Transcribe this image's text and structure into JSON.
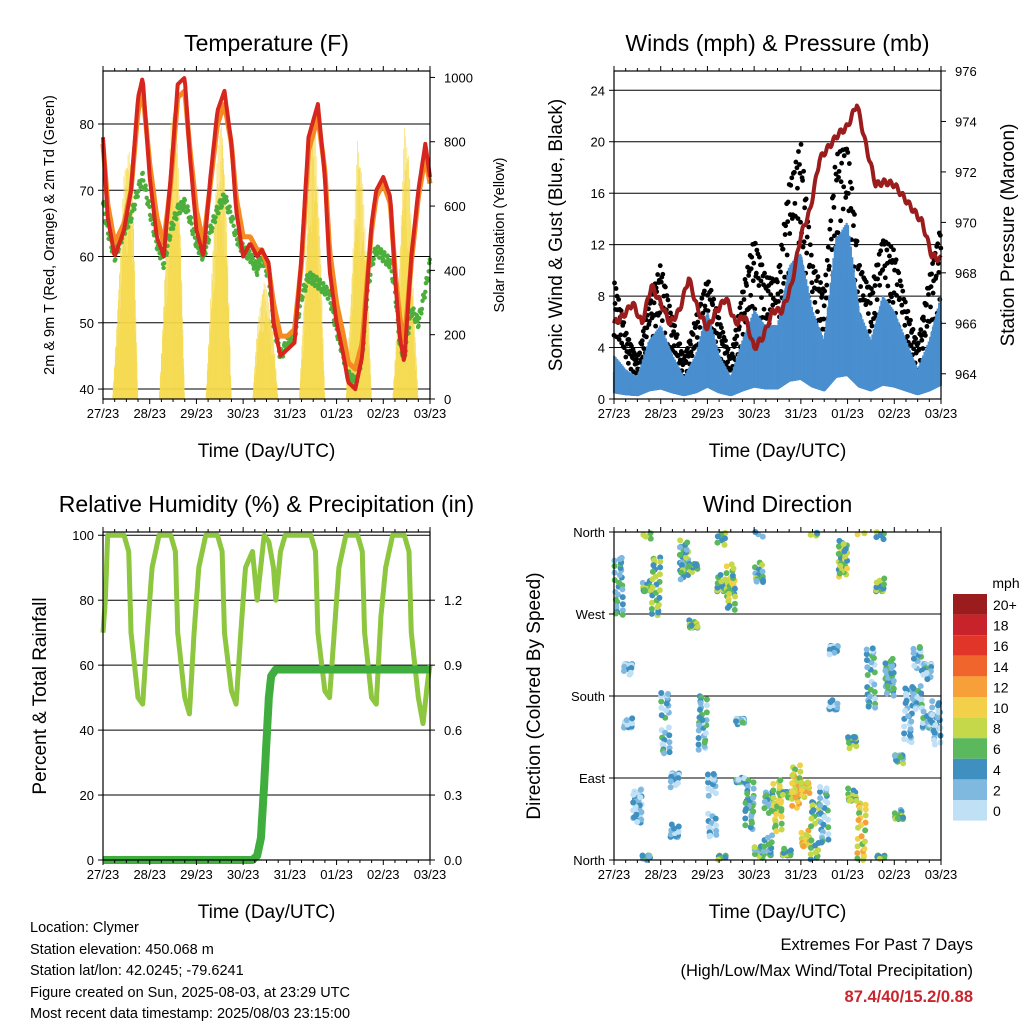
{
  "chart_data": [
    {
      "type": "line",
      "title": "Temperature (F)",
      "xlabel": "Time (Day/UTC)",
      "ylabel": "2m & 9m T (Red, Orange) & 2m Td (Green)",
      "y2label": "Solar Insolation (Yellow)",
      "x_ticks": [
        "27/23",
        "28/23",
        "29/23",
        "30/23",
        "31/23",
        "01/23",
        "02/23",
        "03/23"
      ],
      "xlim": [
        0,
        7
      ],
      "ylim": [
        38.5,
        88
      ],
      "y_ticks": [
        40,
        50,
        60,
        70,
        80
      ],
      "y2lim": [
        0,
        1020
      ],
      "y2_ticks": [
        0,
        200,
        400,
        600,
        800,
        1000
      ],
      "grid": "horizontal",
      "series": [
        {
          "name": "2m T",
          "color": "#d7261e",
          "x": [
            0,
            0.1,
            0.25,
            0.45,
            0.6,
            0.75,
            0.85,
            1.0,
            1.15,
            1.3,
            1.45,
            1.6,
            1.75,
            1.85,
            2.0,
            2.15,
            2.3,
            2.45,
            2.6,
            2.75,
            2.85,
            3.0,
            3.15,
            3.3,
            3.4,
            3.55,
            3.65,
            3.8,
            3.95,
            4.1,
            4.25,
            4.4,
            4.6,
            4.75,
            4.85,
            5.0,
            5.15,
            5.25,
            5.4,
            5.55,
            5.65,
            5.75,
            5.85,
            6.0,
            6.15,
            6.25,
            6.35,
            6.45,
            6.6,
            6.75,
            6.9,
            7.0
          ],
          "y": [
            78,
            66,
            60,
            64,
            70,
            84,
            87,
            72,
            63,
            60,
            72,
            86,
            87,
            76,
            64,
            60,
            72,
            82,
            85,
            77,
            67,
            60,
            62,
            60,
            61,
            59,
            50,
            45,
            46,
            47,
            60,
            78,
            83,
            72,
            58,
            50,
            45,
            41,
            40,
            45,
            55,
            65,
            70,
            72,
            69,
            57,
            48,
            44,
            60,
            70,
            77,
            72
          ]
        },
        {
          "name": "9m T",
          "color": "#f58a22",
          "x": [
            0,
            0.1,
            0.25,
            0.45,
            0.6,
            0.75,
            0.85,
            1.0,
            1.15,
            1.3,
            1.45,
            1.6,
            1.75,
            1.85,
            2.0,
            2.15,
            2.3,
            2.45,
            2.6,
            2.75,
            2.85,
            3.0,
            3.15,
            3.3,
            3.4,
            3.55,
            3.65,
            3.8,
            3.95,
            4.1,
            4.25,
            4.4,
            4.6,
            4.75,
            4.85,
            5.0,
            5.15,
            5.25,
            5.4,
            5.55,
            5.65,
            5.75,
            5.85,
            6.0,
            6.15,
            6.25,
            6.35,
            6.45,
            6.6,
            6.75,
            6.9,
            7.0
          ],
          "y": [
            77,
            68,
            62,
            65,
            70,
            82,
            85,
            74,
            66,
            62,
            71,
            84,
            85,
            77,
            67,
            62,
            71,
            80,
            83,
            77,
            69,
            63,
            63,
            61,
            61,
            58,
            53,
            48,
            48,
            49,
            59,
            76,
            81,
            73,
            61,
            53,
            48,
            44,
            43,
            47,
            56,
            64,
            69,
            71,
            68,
            58,
            51,
            47,
            59,
            69,
            75,
            71
          ]
        },
        {
          "name": "2m Td",
          "color": "#4caf3c",
          "x": [
            0,
            0.1,
            0.25,
            0.45,
            0.6,
            0.75,
            0.85,
            1.0,
            1.15,
            1.3,
            1.45,
            1.6,
            1.75,
            1.85,
            2.0,
            2.15,
            2.3,
            2.45,
            2.6,
            2.75,
            2.85,
            3.0,
            3.15,
            3.3,
            3.4,
            3.55,
            3.65,
            3.8,
            3.95,
            4.1,
            4.25,
            4.4,
            4.6,
            4.75,
            4.85,
            5.0,
            5.15,
            5.25,
            5.4,
            5.55,
            5.65,
            5.75,
            5.85,
            6.0,
            6.15,
            6.25,
            6.35,
            6.45,
            6.6,
            6.75,
            6.9,
            7.0
          ],
          "y": [
            68,
            64,
            60,
            64,
            66,
            70,
            72,
            67,
            62,
            59,
            64,
            67,
            68,
            66,
            62,
            60,
            64,
            67,
            69,
            66,
            63,
            61,
            60,
            58,
            60,
            57,
            50,
            45,
            47,
            48,
            54,
            57,
            56,
            55,
            54,
            49,
            45,
            42,
            41,
            45,
            54,
            59,
            61,
            60,
            59,
            55,
            47,
            45,
            52,
            50,
            55,
            59
          ]
        },
        {
          "name": "Solar Insolation",
          "color": "#f5d94a",
          "axis": "y2",
          "x": [
            0,
            0.2,
            0.3,
            0.45,
            0.55,
            0.65,
            0.75,
            1.2,
            1.3,
            1.45,
            1.55,
            1.65,
            1.75,
            2.2,
            2.3,
            2.45,
            2.55,
            2.65,
            2.75,
            3.2,
            3.3,
            3.45,
            3.55,
            3.65,
            3.75,
            4.2,
            4.3,
            4.45,
            4.55,
            4.65,
            4.75,
            5.2,
            5.3,
            5.45,
            5.55,
            5.65,
            5.75,
            6.2,
            6.3,
            6.45,
            6.55,
            6.65,
            6.75,
            7.0
          ],
          "y": [
            0,
            0,
            250,
            700,
            800,
            600,
            0,
            0,
            300,
            850,
            950,
            600,
            0,
            0,
            300,
            780,
            880,
            560,
            0,
            0,
            220,
            380,
            300,
            200,
            0,
            0,
            300,
            920,
            850,
            500,
            0,
            0,
            300,
            820,
            700,
            420,
            0,
            0,
            250,
            850,
            780,
            300,
            0,
            0
          ]
        }
      ]
    },
    {
      "type": "scatter",
      "title": "Winds (mph) & Pressure (mb)",
      "xlabel": "Time (Day/UTC)",
      "ylabel": "Sonic Wind & Gust (Blue, Black)",
      "y2label": "Station Pressure (Maroon)",
      "x_ticks": [
        "27/23",
        "28/23",
        "29/23",
        "30/23",
        "31/23",
        "01/23",
        "02/23",
        "03/23"
      ],
      "xlim": [
        0,
        7
      ],
      "ylim": [
        0,
        25.5
      ],
      "y_ticks": [
        0,
        4,
        8,
        12,
        16,
        20,
        24
      ],
      "y2lim": [
        963,
        976
      ],
      "y2_ticks": [
        964,
        966,
        968,
        970,
        972,
        974,
        976
      ],
      "grid": "horizontal",
      "series": [
        {
          "name": "Sonic Wind",
          "color": "#4a8fcf",
          "type": "area",
          "x": [
            0,
            0.25,
            0.5,
            0.75,
            1.0,
            1.25,
            1.5,
            1.75,
            2.0,
            2.25,
            2.5,
            2.75,
            3.0,
            3.25,
            3.5,
            3.75,
            4.0,
            4.25,
            4.5,
            4.75,
            5.0,
            5.25,
            5.5,
            5.75,
            6.0,
            6.25,
            6.5,
            6.75,
            7.0
          ],
          "y": [
            3,
            2,
            1.5,
            4,
            5,
            3,
            1.5,
            3,
            6,
            3,
            1.5,
            4,
            6,
            5,
            5,
            9,
            10,
            6,
            4,
            11,
            12,
            6,
            4,
            7,
            6,
            4,
            2,
            4,
            7
          ]
        },
        {
          "name": "Gust",
          "color": "#000000",
          "type": "scatter",
          "x": [
            0,
            0.25,
            0.5,
            0.75,
            1.0,
            1.25,
            1.5,
            1.75,
            2.0,
            2.25,
            2.5,
            2.75,
            3.0,
            3.25,
            3.5,
            3.75,
            4.0,
            4.25,
            4.5,
            4.75,
            5.0,
            5.25,
            5.5,
            5.75,
            6.0,
            6.25,
            6.5,
            6.75,
            7.0
          ],
          "y": [
            9,
            5,
            3,
            7,
            10,
            6,
            3,
            6,
            9,
            6,
            3,
            8,
            12,
            9,
            9,
            16,
            19,
            10,
            8,
            18,
            19,
            10,
            8,
            12,
            11,
            7,
            4,
            9,
            13
          ]
        },
        {
          "name": "Station Pressure",
          "color": "#9b1c1c",
          "axis": "y2",
          "type": "line",
          "x": [
            0,
            0.2,
            0.4,
            0.6,
            0.8,
            1.0,
            1.2,
            1.4,
            1.6,
            1.8,
            2.0,
            2.2,
            2.4,
            2.6,
            2.8,
            3.0,
            3.2,
            3.4,
            3.6,
            3.8,
            4.0,
            4.2,
            4.4,
            4.6,
            4.8,
            5.0,
            5.2,
            5.4,
            5.6,
            5.8,
            6.0,
            6.2,
            6.4,
            6.6,
            6.8,
            7.0
          ],
          "y": [
            966,
            966.3,
            966.8,
            966,
            967.5,
            966.8,
            966,
            966.5,
            967.8,
            966.5,
            965.8,
            966.5,
            967,
            966,
            966.3,
            965,
            965.5,
            966.5,
            966.5,
            967.5,
            969.5,
            970.5,
            972.5,
            973,
            973.5,
            973.8,
            974.7,
            973,
            971.5,
            971.6,
            971.5,
            971,
            970.5,
            970,
            968.7,
            968.5
          ]
        }
      ]
    },
    {
      "type": "line",
      "title": "Relative Humidity (%) & Precipitation (in)",
      "xlabel": "Time (Day/UTC)",
      "ylabel": "Percent & Total Rainfall",
      "x_ticks": [
        "27/23",
        "28/23",
        "29/23",
        "30/23",
        "31/23",
        "01/23",
        "02/23",
        "03/23"
      ],
      "xlim": [
        0,
        7
      ],
      "ylim": [
        0,
        101
      ],
      "y_ticks": [
        0,
        20,
        40,
        60,
        80,
        100
      ],
      "y2lim": [
        0,
        1.515
      ],
      "y2_ticks": [
        0.0,
        0.3,
        0.6,
        0.9,
        1.2
      ],
      "grid": "horizontal",
      "series": [
        {
          "name": "Relative Humidity",
          "color": "#8dc63f",
          "x": [
            0,
            0.05,
            0.1,
            0.2,
            0.45,
            0.55,
            0.6,
            0.75,
            0.85,
            0.95,
            1.05,
            1.2,
            1.45,
            1.55,
            1.6,
            1.75,
            1.85,
            1.95,
            2.05,
            2.2,
            2.45,
            2.55,
            2.6,
            2.75,
            2.85,
            2.95,
            3.05,
            3.2,
            3.3,
            3.45,
            3.55,
            3.65,
            3.7,
            3.8,
            3.9,
            4.0,
            4.1,
            4.25,
            4.45,
            4.55,
            4.6,
            4.75,
            4.85,
            4.95,
            5.05,
            5.2,
            5.45,
            5.55,
            5.6,
            5.75,
            5.85,
            5.95,
            6.05,
            6.2,
            6.45,
            6.55,
            6.6,
            6.75,
            6.85,
            6.95,
            7.0
          ],
          "y": [
            70,
            80,
            100,
            100,
            100,
            95,
            70,
            50,
            48,
            70,
            90,
            100,
            100,
            95,
            70,
            50,
            45,
            70,
            90,
            100,
            100,
            95,
            70,
            52,
            48,
            70,
            90,
            95,
            80,
            100,
            98,
            90,
            80,
            95,
            100,
            100,
            100,
            100,
            100,
            95,
            70,
            52,
            50,
            70,
            90,
            100,
            100,
            95,
            70,
            50,
            48,
            75,
            90,
            100,
            100,
            95,
            70,
            50,
            42,
            55,
            60
          ]
        },
        {
          "name": "Total Rainfall",
          "color": "#3fae3f",
          "axis": "y2",
          "x": [
            0,
            3.2,
            3.3,
            3.38,
            3.45,
            3.5,
            3.55,
            3.6,
            3.7,
            3.8,
            4.0,
            7.0
          ],
          "y": [
            0.0,
            0.0,
            0.02,
            0.1,
            0.35,
            0.55,
            0.75,
            0.85,
            0.88,
            0.88,
            0.88,
            0.88
          ]
        }
      ]
    },
    {
      "type": "scatter",
      "title": "Wind Direction",
      "xlabel": "Time (Day/UTC)",
      "ylabel": "Direction (Colored By Speed)",
      "x_ticks": [
        "27/23",
        "28/23",
        "29/23",
        "30/23",
        "31/23",
        "01/23",
        "02/23",
        "03/23"
      ],
      "xlim": [
        0,
        7
      ],
      "ylim": [
        0,
        360
      ],
      "y_ticks": [
        "North",
        "East",
        "South",
        "West",
        "North"
      ],
      "y_tick_values": [
        0,
        90,
        180,
        270,
        360
      ],
      "grid": "horizontal",
      "legend": {
        "title": "mph",
        "labels": [
          "20+",
          "18",
          "16",
          "14",
          "12",
          "10",
          "8",
          "6",
          "4",
          "2",
          "0"
        ],
        "colors": [
          "#9b1c1c",
          "#c8222a",
          "#e2352a",
          "#f0652b",
          "#f7a03a",
          "#f3d04a",
          "#c5d84a",
          "#5cb85c",
          "#3f8fc0",
          "#7fb9e0",
          "#bfe0f5"
        ]
      },
      "series": [
        {
          "name": "Direction",
          "x": [
            0.1,
            0.3,
            0.5,
            0.7,
            0.9,
            1.1,
            1.3,
            1.5,
            1.7,
            1.9,
            2.1,
            2.3,
            2.5,
            2.7,
            2.9,
            3.1,
            3.3,
            3.5,
            3.7,
            3.9,
            4.1,
            4.3,
            4.5,
            4.7,
            4.9,
            5.1,
            5.3,
            5.5,
            5.7,
            5.9,
            6.1,
            6.3,
            6.5,
            6.7,
            6.9
          ],
          "y": [
            300,
            180,
            60,
            330,
            300,
            150,
            60,
            330,
            290,
            150,
            60,
            330,
            300,
            120,
            60,
            340,
            40,
            60,
            40,
            80,
            50,
            30,
            50,
            200,
            330,
            100,
            30,
            200,
            330,
            200,
            80,
            160,
            200,
            180,
            150
          ],
          "speed": [
            4,
            2,
            1,
            5,
            6,
            3,
            2,
            5,
            6,
            3,
            1,
            6,
            7,
            3,
            4,
            5,
            4,
            8,
            6,
            9,
            10,
            6,
            3,
            2,
            7,
            6,
            9,
            3,
            6,
            4,
            5,
            2,
            3,
            3,
            2
          ]
        }
      ]
    }
  ],
  "info": {
    "location": "Location: Clymer",
    "elevation": "Station elevation: 450.068 m",
    "latlon": "Station lat/lon: 42.0245; -79.6241",
    "created": "Figure created on Sun, 2025-08-03, at 23:29 UTC",
    "recent": "Most recent data timestamp: 2025/08/03 23:15:00"
  },
  "extremes": {
    "title": "Extremes For Past 7 Days",
    "subtitle": "(High/Low/Max Wind/Total Precipitation)",
    "values": "87.4/40/15.2/0.88"
  }
}
